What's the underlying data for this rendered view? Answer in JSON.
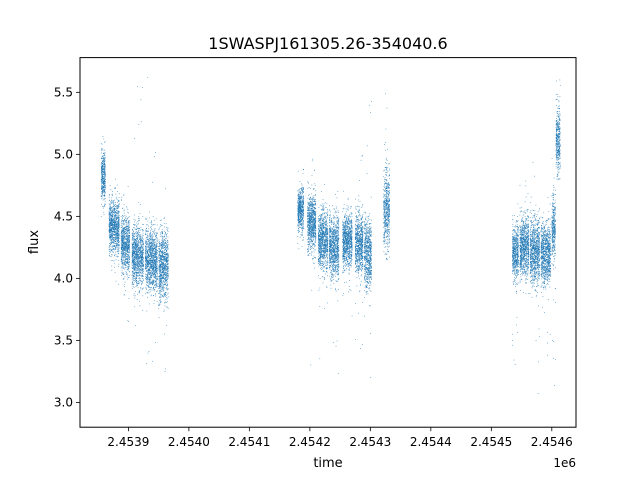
{
  "chart_data": {
    "type": "scatter",
    "title": "1SWASPJ161305.26-354040.6",
    "xlabel": "time",
    "ylabel": "flux",
    "x_offset_label": "1e6",
    "xlim": [
      2453820,
      2454640
    ],
    "ylim": [
      2.8,
      5.78
    ],
    "x_ticks": [
      2453900,
      2454000,
      2454100,
      2454200,
      2454300,
      2454400,
      2454500,
      2454600
    ],
    "x_tick_labels": [
      "2.4539",
      "2.4540",
      "2.4541",
      "2.4542",
      "2.4543",
      "2.4544",
      "2.4545",
      "2.4546"
    ],
    "y_ticks": [
      3.0,
      3.5,
      4.0,
      4.5,
      5.0,
      5.5
    ],
    "y_tick_labels": [
      "3.0",
      "3.5",
      "4.0",
      "4.5",
      "5.0",
      "5.5"
    ],
    "grid": false,
    "marker_color": "#1f77b4",
    "series": [
      {
        "segments": [
          {
            "x_start": 2453855,
            "x_end": 2453862,
            "y_center": 4.82,
            "y_spread": 0.18,
            "outlier_low": 4.5,
            "outlier_high": 5.18
          },
          {
            "x_start": 2453868,
            "x_end": 2453885,
            "y_center": 4.42,
            "y_spread": 0.2,
            "outlier_low": 3.9,
            "outlier_high": 4.8
          },
          {
            "x_start": 2453888,
            "x_end": 2453902,
            "y_center": 4.28,
            "y_spread": 0.2,
            "outlier_low": 3.6,
            "outlier_high": 4.75
          },
          {
            "x_start": 2453906,
            "x_end": 2453925,
            "y_center": 4.18,
            "y_spread": 0.22,
            "outlier_low": 3.0,
            "outlier_high": 5.6
          },
          {
            "x_start": 2453928,
            "x_end": 2453948,
            "y_center": 4.15,
            "y_spread": 0.22,
            "outlier_low": 3.3,
            "outlier_high": 5.65
          },
          {
            "x_start": 2453950,
            "x_end": 2453966,
            "y_center": 4.1,
            "y_spread": 0.25,
            "outlier_low": 2.95,
            "outlier_high": 4.8
          },
          {
            "x_start": 2454180,
            "x_end": 2454190,
            "y_center": 4.55,
            "y_spread": 0.15,
            "outlier_low": 4.2,
            "outlier_high": 5.0
          },
          {
            "x_start": 2454196,
            "x_end": 2454210,
            "y_center": 4.45,
            "y_spread": 0.2,
            "outlier_low": 2.95,
            "outlier_high": 5.5
          },
          {
            "x_start": 2454214,
            "x_end": 2454230,
            "y_center": 4.3,
            "y_spread": 0.22,
            "outlier_low": 3.3,
            "outlier_high": 4.9
          },
          {
            "x_start": 2454232,
            "x_end": 2454248,
            "y_center": 4.25,
            "y_spread": 0.22,
            "outlier_low": 3.05,
            "outlier_high": 4.7
          },
          {
            "x_start": 2454254,
            "x_end": 2454270,
            "y_center": 4.3,
            "y_spread": 0.2,
            "outlier_low": 3.6,
            "outlier_high": 4.8
          },
          {
            "x_start": 2454275,
            "x_end": 2454288,
            "y_center": 4.28,
            "y_spread": 0.22,
            "outlier_low": 3.4,
            "outlier_high": 5.0
          },
          {
            "x_start": 2454290,
            "x_end": 2454302,
            "y_center": 4.2,
            "y_spread": 0.25,
            "outlier_low": 3.2,
            "outlier_high": 5.45
          },
          {
            "x_start": 2454322,
            "x_end": 2454332,
            "y_center": 4.55,
            "y_spread": 0.3,
            "outlier_low": 4.15,
            "outlier_high": 5.5
          },
          {
            "x_start": 2454535,
            "x_end": 2454545,
            "y_center": 4.2,
            "y_spread": 0.2,
            "outlier_low": 3.3,
            "outlier_high": 4.6
          },
          {
            "x_start": 2454547,
            "x_end": 2454562,
            "y_center": 4.25,
            "y_spread": 0.22,
            "outlier_low": 3.2,
            "outlier_high": 4.9
          },
          {
            "x_start": 2454564,
            "x_end": 2454580,
            "y_center": 4.22,
            "y_spread": 0.24,
            "outlier_low": 2.95,
            "outlier_high": 5.0
          },
          {
            "x_start": 2454582,
            "x_end": 2454598,
            "y_center": 4.2,
            "y_spread": 0.22,
            "outlier_low": 3.3,
            "outlier_high": 4.8
          },
          {
            "x_start": 2454600,
            "x_end": 2454606,
            "y_center": 4.4,
            "y_spread": 0.25,
            "outlier_low": 3.1,
            "outlier_high": 5.0
          },
          {
            "x_start": 2454607,
            "x_end": 2454614,
            "y_center": 5.1,
            "y_spread": 0.25,
            "outlier_low": 4.8,
            "outlier_high": 5.6
          }
        ]
      }
    ]
  }
}
